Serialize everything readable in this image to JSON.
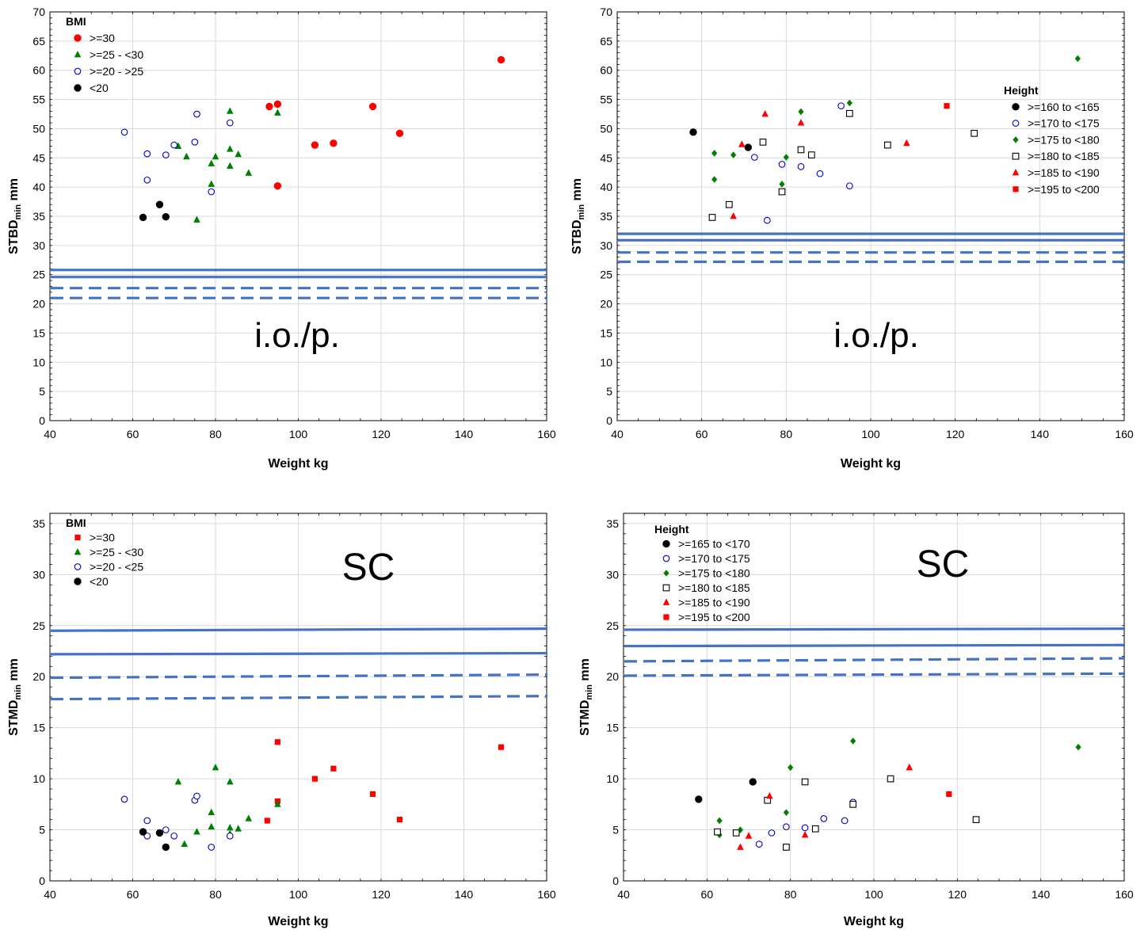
{
  "chart_data": [
    {
      "type": "scatter",
      "xlabel": "Weight kg",
      "ylabel": "STBD",
      "ylabel_sub": "min",
      "ylabel_unit": " mm",
      "annotation": "i.o./p.",
      "xlim": [
        40,
        160
      ],
      "ylim": [
        0,
        70
      ],
      "xticks": [
        40,
        60,
        80,
        100,
        120,
        140,
        160
      ],
      "yticks": [
        0,
        5,
        10,
        15,
        20,
        25,
        30,
        35,
        40,
        45,
        50,
        55,
        60,
        65,
        70
      ],
      "grid": true,
      "legend_title": "BMI",
      "legend_position": "top-left",
      "series": [
        {
          "name": ">=30",
          "marker": "circle-filled",
          "color": "#ff0000",
          "points": [
            [
              93,
              53.8
            ],
            [
              95,
              54.2
            ],
            [
              95,
              40.2
            ],
            [
              104,
              47.2
            ],
            [
              108.5,
              47.5
            ],
            [
              118,
              53.8
            ],
            [
              124.5,
              49.2
            ],
            [
              149,
              61.8
            ]
          ]
        },
        {
          "name": ">=25 - <30",
          "marker": "triangle-filled",
          "color": "#008000",
          "points": [
            [
              71,
              47
            ],
            [
              73,
              45.2
            ],
            [
              75.5,
              34.4
            ],
            [
              79,
              40.5
            ],
            [
              79,
              44
            ],
            [
              80,
              45.2
            ],
            [
              83.5,
              53
            ],
            [
              83.5,
              46.5
            ],
            [
              83.5,
              43.6
            ],
            [
              85.5,
              45.6
            ],
            [
              88,
              42.4
            ],
            [
              95,
              52.7
            ]
          ]
        },
        {
          "name": ">=20 - >25",
          "marker": "circle-open",
          "color": "#0000cc",
          "points": [
            [
              58,
              49.4
            ],
            [
              63.5,
              45.7
            ],
            [
              63.5,
              41.2
            ],
            [
              68,
              45.5
            ],
            [
              70,
              47.2
            ],
            [
              75,
              47.7
            ],
            [
              75.5,
              52.5
            ],
            [
              79,
              39.2
            ],
            [
              83.5,
              51
            ]
          ]
        },
        {
          "name": "<20",
          "marker": "circle-filled",
          "color": "#000000",
          "points": [
            [
              62.5,
              34.8
            ],
            [
              66.5,
              37
            ],
            [
              68,
              34.9
            ]
          ]
        }
      ],
      "reference_lines": [
        {
          "style": "solid",
          "y_start": 25.8,
          "y_end": 25.8
        },
        {
          "style": "solid",
          "y_start": 24.6,
          "y_end": 24.6
        },
        {
          "style": "dashed",
          "y_start": 22.7,
          "y_end": 22.7
        },
        {
          "style": "dashed",
          "y_start": 21,
          "y_end": 21
        }
      ]
    },
    {
      "type": "scatter",
      "xlabel": "Weight kg",
      "ylabel": "STBD",
      "ylabel_sub": "min",
      "ylabel_unit": " mm",
      "annotation": "i.o./p.",
      "xlim": [
        40,
        160
      ],
      "ylim": [
        0,
        70
      ],
      "xticks": [
        40,
        60,
        80,
        100,
        120,
        140,
        160
      ],
      "yticks": [
        0,
        5,
        10,
        15,
        20,
        25,
        30,
        35,
        40,
        45,
        50,
        55,
        60,
        65,
        70
      ],
      "grid": true,
      "legend_title": "Height",
      "legend_position": "right",
      "series": [
        {
          "name": ">=160 to <165",
          "marker": "circle-filled",
          "color": "#000000",
          "points": [
            [
              58,
              49.4
            ],
            [
              71,
              46.8
            ]
          ]
        },
        {
          "name": ">=170 to <175",
          "marker": "circle-open",
          "color": "#0000cc",
          "points": [
            [
              72.5,
              45.1
            ],
            [
              75.5,
              34.3
            ],
            [
              79,
              43.9
            ],
            [
              83.5,
              43.5
            ],
            [
              88,
              42.3
            ],
            [
              93,
              53.9
            ],
            [
              95,
              40.2
            ]
          ]
        },
        {
          "name": ">=175 to <180",
          "marker": "diamond-filled",
          "color": "#008000",
          "points": [
            [
              63,
              45.8
            ],
            [
              63,
              41.3
            ],
            [
              67.5,
              45.5
            ],
            [
              79,
              40.5
            ],
            [
              80,
              45.1
            ],
            [
              83.5,
              52.9
            ],
            [
              95,
              54.4
            ],
            [
              149,
              62
            ]
          ]
        },
        {
          "name": ">=180 to <185",
          "marker": "square-open",
          "color": "#000000",
          "points": [
            [
              62.5,
              34.8
            ],
            [
              66.5,
              37
            ],
            [
              74.5,
              47.7
            ],
            [
              79,
              39.2
            ],
            [
              83.5,
              46.4
            ],
            [
              86,
              45.5
            ],
            [
              95,
              52.6
            ],
            [
              104,
              47.2
            ],
            [
              124.5,
              49.2
            ]
          ]
        },
        {
          "name": ">=185 to <190",
          "marker": "triangle-filled",
          "color": "#ff0000",
          "points": [
            [
              67.5,
              35
            ],
            [
              69.5,
              47.3
            ],
            [
              75,
              52.5
            ],
            [
              83.5,
              51
            ],
            [
              108.5,
              47.5
            ]
          ]
        },
        {
          "name": ">=195 to <200",
          "marker": "square-filled",
          "color": "#ff0000",
          "points": [
            [
              118,
              53.9
            ]
          ]
        }
      ],
      "reference_lines": [
        {
          "style": "solid",
          "y_start": 32,
          "y_end": 32
        },
        {
          "style": "solid",
          "y_start": 30.9,
          "y_end": 30.9
        },
        {
          "style": "dashed",
          "y_start": 28.8,
          "y_end": 28.8
        },
        {
          "style": "dashed",
          "y_start": 27.2,
          "y_end": 27.2
        }
      ]
    },
    {
      "type": "scatter",
      "xlabel": "Weight kg",
      "ylabel": "STMD",
      "ylabel_sub": "min",
      "ylabel_unit": " mm",
      "annotation": "SC",
      "xlim": [
        40,
        160
      ],
      "ylim": [
        0,
        36
      ],
      "xticks": [
        40,
        60,
        80,
        100,
        120,
        140,
        160
      ],
      "yticks": [
        0,
        5,
        10,
        15,
        20,
        25,
        30,
        35
      ],
      "grid": true,
      "legend_title": "BMI",
      "legend_position": "top-left",
      "series": [
        {
          "name": ">=30",
          "marker": "square-filled",
          "color": "#ff0000",
          "points": [
            [
              92.5,
              5.9
            ],
            [
              95,
              13.6
            ],
            [
              95,
              7.8
            ],
            [
              104,
              10
            ],
            [
              108.5,
              11
            ],
            [
              118,
              8.5
            ],
            [
              124.5,
              6
            ],
            [
              149,
              13.1
            ]
          ]
        },
        {
          "name": ">=25 - <30",
          "marker": "triangle-filled",
          "color": "#008000",
          "points": [
            [
              71,
              9.7
            ],
            [
              72.5,
              3.6
            ],
            [
              75.5,
              4.8
            ],
            [
              79,
              6.7
            ],
            [
              79,
              5.3
            ],
            [
              80,
              11.1
            ],
            [
              83.5,
              9.7
            ],
            [
              83.5,
              5.2
            ],
            [
              83.5,
              4.6
            ],
            [
              85.5,
              5.1
            ],
            [
              88,
              6.1
            ],
            [
              95,
              7.5
            ]
          ]
        },
        {
          "name": ">=20 - <25",
          "marker": "circle-open",
          "color": "#0000cc",
          "points": [
            [
              58,
              8
            ],
            [
              63.5,
              5.9
            ],
            [
              63.5,
              4.4
            ],
            [
              68,
              5
            ],
            [
              70,
              4.4
            ],
            [
              75,
              7.9
            ],
            [
              75.5,
              8.3
            ],
            [
              79,
              3.3
            ],
            [
              83.5,
              4.4
            ]
          ]
        },
        {
          "name": "<20",
          "marker": "circle-filled",
          "color": "#000000",
          "points": [
            [
              62.5,
              4.8
            ],
            [
              66.5,
              4.7
            ],
            [
              68,
              3.3
            ]
          ]
        }
      ],
      "reference_lines": [
        {
          "style": "solid",
          "y_start": 24.5,
          "y_end": 24.7
        },
        {
          "style": "solid",
          "y_start": 22.2,
          "y_end": 22.3
        },
        {
          "style": "dashed",
          "y_start": 19.9,
          "y_end": 20.2
        },
        {
          "style": "dashed",
          "y_start": 17.8,
          "y_end": 18.1
        }
      ]
    },
    {
      "type": "scatter",
      "xlabel": "Weight kg",
      "ylabel": "STMD",
      "ylabel_sub": "min",
      "ylabel_unit": " mm",
      "annotation": "SC",
      "xlim": [
        40,
        160
      ],
      "ylim": [
        0,
        36
      ],
      "xticks": [
        40,
        60,
        80,
        100,
        120,
        140,
        160
      ],
      "yticks": [
        0,
        5,
        10,
        15,
        20,
        25,
        30,
        35
      ],
      "grid": true,
      "legend_title": "Height",
      "legend_position": "top-left",
      "series": [
        {
          "name": ">=165 to <170",
          "marker": "circle-filled",
          "color": "#000000",
          "points": [
            [
              58,
              8
            ],
            [
              71,
              9.7
            ]
          ]
        },
        {
          "name": ">=170 to <175",
          "marker": "circle-open",
          "color": "#0000cc",
          "points": [
            [
              72.5,
              3.6
            ],
            [
              75.5,
              4.7
            ],
            [
              79,
              5.3
            ],
            [
              83.5,
              5.2
            ],
            [
              88,
              6.1
            ],
            [
              93,
              5.9
            ],
            [
              95,
              7.7
            ]
          ]
        },
        {
          "name": ">=175 to <180",
          "marker": "diamond-filled",
          "color": "#008000",
          "points": [
            [
              63,
              5.9
            ],
            [
              63,
              4.5
            ],
            [
              68,
              5
            ],
            [
              79,
              6.7
            ],
            [
              80,
              11.1
            ],
            [
              95,
              13.7
            ],
            [
              149,
              13.1
            ]
          ]
        },
        {
          "name": ">=180 to <185",
          "marker": "square-open",
          "color": "#000000",
          "points": [
            [
              62.5,
              4.8
            ],
            [
              67,
              4.7
            ],
            [
              74.5,
              7.9
            ],
            [
              79,
              3.3
            ],
            [
              83.5,
              9.7
            ],
            [
              86,
              5.1
            ],
            [
              95,
              7.5
            ],
            [
              104,
              10
            ],
            [
              124.5,
              6
            ]
          ]
        },
        {
          "name": ">=185 to <190",
          "marker": "triangle-filled",
          "color": "#ff0000",
          "points": [
            [
              68,
              3.3
            ],
            [
              70,
              4.4
            ],
            [
              75,
              8.3
            ],
            [
              83.5,
              4.5
            ],
            [
              108.5,
              11.1
            ]
          ]
        },
        {
          "name": ">=195 to <200",
          "marker": "square-filled",
          "color": "#ff0000",
          "points": [
            [
              118,
              8.5
            ]
          ]
        }
      ],
      "reference_lines": [
        {
          "style": "solid",
          "y_start": 24.6,
          "y_end": 24.7
        },
        {
          "style": "solid",
          "y_start": 23,
          "y_end": 23.1
        },
        {
          "style": "dashed",
          "y_start": 21.5,
          "y_end": 21.8
        },
        {
          "style": "dashed",
          "y_start": 20.1,
          "y_end": 20.3
        }
      ]
    }
  ],
  "colors": {
    "reference_line": "#4472c4",
    "grid": "#d9d9d9"
  }
}
